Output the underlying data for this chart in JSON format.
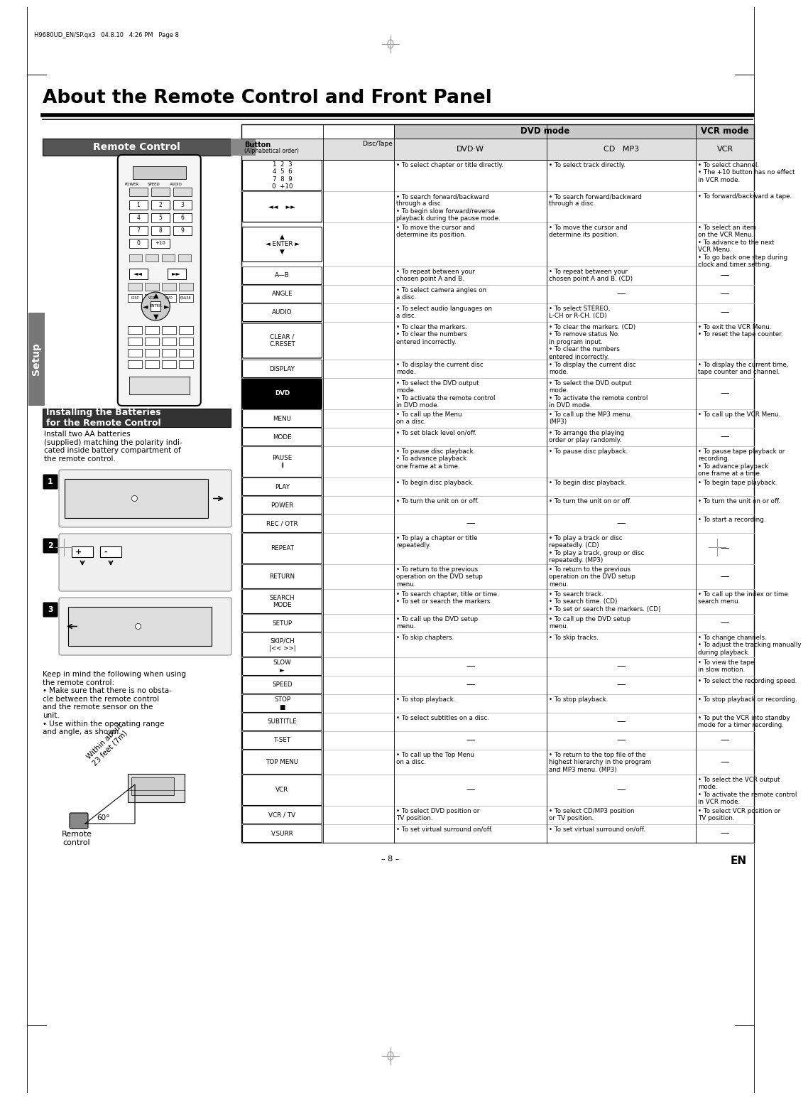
{
  "page_header": "H9680UD_EN/SP.qx3   04.8.10   4:26 PM   Page 8",
  "main_title": "About the Remote Control and Front Panel",
  "left_panel_title": "Remote Control",
  "left_panel2_title": "Installing the Batteries\nfor the Remote Control",
  "left_panel2_text": "Install two AA batteries\n(supplied) matching the polarity indi-\ncated inside battery compartment of\nthe remote control.",
  "left_panel_bottom_text": "Keep in mind the following when using\nthe remote control:\n• Make sure that there is no obsta-\ncle between the remote control\nand the remote sensor on the\nunit.\n• Use within the operating range\nand angle, as shown.",
  "remote_caption": "Remote\ncontrol",
  "setup_label": "Setup",
  "page_number": "– 8 –",
  "en_label": "EN",
  "table_rows": [
    {
      "button": "1  2  3\n4  5  6\n7  8  9\n0  +10",
      "dvd1": "• To select chapter or title directly.",
      "dvd2": "• To select track directly.",
      "vcr": "• To select channel.\n• The +10 button has no effect\nin VCR mode."
    },
    {
      "button": "◄◄    ►►",
      "dvd1": "• To search forward/backward\nthrough a disc.\n• To begin slow forward/reverse\nplayback during the pause mode.",
      "dvd2": "• To search forward/backward\nthrough a disc.",
      "vcr": "• To forward/backward a tape."
    },
    {
      "button": "▲\n◄ ENTER ►\n▼",
      "dvd1": "• To move the cursor and\ndetermine its position.",
      "dvd2": "• To move the cursor and\ndetermine its position.",
      "vcr": "• To select an item\non the VCR Menu.\n• To advance to the next\nVCR Menu.\n• To go back one step during\nclock and timer setting."
    },
    {
      "button": "A—B",
      "dvd1": "• To repeat between your\nchosen point A and B.",
      "dvd2": "• To repeat between your\nchosen point A and B. (CD)",
      "vcr": "—"
    },
    {
      "button": "ANGLE",
      "dvd1": "• To select camera angles on\na disc.",
      "dvd2": "—",
      "vcr": "—"
    },
    {
      "button": "AUDIO",
      "dvd1": "• To select audio languages on\na disc.",
      "dvd2": "• To select STEREO,\nL-CH or R-CH. (CD)",
      "vcr": "—"
    },
    {
      "button": "CLEAR /\nC.RESET",
      "dvd1": "• To clear the markers.\n• To clear the numbers\nentered incorrectly.",
      "dvd2": "• To clear the markers. (CD)\n• To remove status No.\nin program input.\n• To clear the numbers\nentered incorrectly.",
      "vcr": "• To exit the VCR Menu.\n• To reset the tape counter."
    },
    {
      "button": "DISPLAY",
      "dvd1": "• To display the current disc\nmode.",
      "dvd2": "• To display the current disc\nmode.",
      "vcr": "• To display the current time,\ntape counter and channel."
    },
    {
      "button": "DVD",
      "button_style": "black_bg",
      "dvd1": "• To select the DVD output\nmode.\n• To activate the remote control\nin DVD mode.",
      "dvd2": "• To select the DVD output\nmode.\n• To activate the remote control\nin DVD mode.",
      "vcr": "—"
    },
    {
      "button": "MENU",
      "dvd1": "• To call up the Menu\non a disc.",
      "dvd2": "• To call up the MP3 menu.\n(MP3)",
      "vcr": "• To call up the VCR Menu."
    },
    {
      "button": "MODE",
      "dvd1": "• To set black level on/off.",
      "dvd2": "• To arrange the playing\norder or play randomly.",
      "vcr": "—"
    },
    {
      "button": "PAUSE\nII",
      "dvd1": "• To pause disc playback.\n• To advance playback\none frame at a time.",
      "dvd2": "• To pause disc playback.",
      "vcr": "• To pause tape playback or\nrecording.\n• To advance playback\none frame at a time."
    },
    {
      "button": "PLAY",
      "dvd1": "• To begin disc playback.",
      "dvd2": "• To begin disc playback.",
      "vcr": "• To begin tape playback."
    },
    {
      "button": "POWER",
      "dvd1": "• To turn the unit on or off.",
      "dvd2": "• To turn the unit on or off.",
      "vcr": "• To turn the unit on or off."
    },
    {
      "button": "REC / OTR",
      "dvd1": "—",
      "dvd2": "—",
      "vcr": "• To start a recording."
    },
    {
      "button": "REPEAT",
      "button_style": "outlined",
      "dvd1": "• To play a chapter or title\nrepeatedly.",
      "dvd2": "• To play a track or disc\nrepeatedly. (CD)\n• To play a track, group or disc\nrepeatedly. (MP3)",
      "vcr": "—"
    },
    {
      "button": "RETURN",
      "dvd1": "• To return to the previous\noperation on the DVD setup\nmenu.",
      "dvd2": "• To return to the previous\noperation on the DVD setup\nmenu.",
      "vcr": "—"
    },
    {
      "button": "SEARCH\nMODE",
      "dvd1": "• To search chapter, title or time.\n• To set or search the markers.",
      "dvd2": "• To search track.\n• To search time. (CD)\n• To set or search the markers. (CD)",
      "vcr": "• To call up the index or time\nsearch menu."
    },
    {
      "button": "SETUP",
      "dvd1": "• To call up the DVD setup\nmenu.",
      "dvd2": "• To call up the DVD setup\nmenu.",
      "vcr": "—"
    },
    {
      "button": "SKIP/CH\n|<< >>|",
      "dvd1": "• To skip chapters.",
      "dvd2": "• To skip tracks.",
      "vcr": "• To change channels.\n• To adjust the tracking manually\nduring playback."
    },
    {
      "button": "SLOW\n►",
      "dvd1": "—",
      "dvd2": "—",
      "vcr": "• To view the tape\nin slow motion."
    },
    {
      "button": "SPEED",
      "dvd1": "—",
      "dvd2": "—",
      "vcr": "• To select the recording speed."
    },
    {
      "button": "STOP\n■",
      "dvd1": "• To stop playback.",
      "dvd2": "• To stop playback.",
      "vcr": "• To stop playback or recording."
    },
    {
      "button": "SUBTITLE",
      "dvd1": "• To select subtitles on a disc.",
      "dvd2": "—",
      "vcr": "• To put the VCR into standby\nmode for a timer recording."
    },
    {
      "button": "T-SET",
      "dvd1": "—",
      "dvd2": "—",
      "vcr": "—"
    },
    {
      "button": "TOP MENU",
      "dvd1": "• To call up the Top Menu\non a disc.",
      "dvd2": "• To return to the top file of the\nhighest hierarchy in the program\nand MP3 menu. (MP3)",
      "vcr": "—"
    },
    {
      "button": "VCR",
      "dvd1": "—",
      "dvd2": "—",
      "vcr": "• To select the VCR output\nmode.\n• To activate the remote control\nin VCR mode."
    },
    {
      "button": "VCR / TV",
      "dvd1": "• To select DVD position or\nTV position.",
      "dvd2": "• To select CD/MP3 position\nor TV position.",
      "vcr": "• To select VCR position or\nTV position."
    },
    {
      "button": "V.SURR",
      "dvd1": "• To set virtual surround on/off.",
      "dvd2": "• To set virtual surround on/off.",
      "vcr": "—"
    }
  ]
}
